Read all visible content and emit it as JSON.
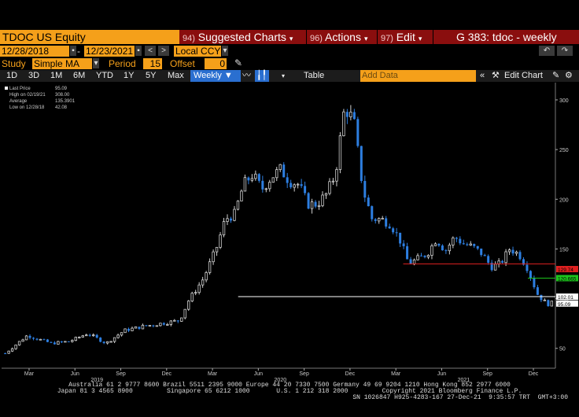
{
  "header": {
    "ticker": "TDOC US Equity",
    "suggested": {
      "num": "94)",
      "label": "Suggested Charts"
    },
    "actions": {
      "num": "96)",
      "label": "Actions"
    },
    "edit": {
      "num": "97)",
      "label": "Edit"
    },
    "right_title": "G 383: tdoc - weekly"
  },
  "dates": {
    "start": "12/28/2018",
    "end": "12/23/2021",
    "currency": "Local CCY"
  },
  "study": {
    "label": "Study",
    "type": "Simple MA",
    "period_label": "Period",
    "period": "15",
    "offset_label": "Offset",
    "offset": "0"
  },
  "toolbar": {
    "ranges": [
      "1D",
      "3D",
      "1M",
      "6M",
      "YTD",
      "1Y",
      "5Y",
      "Max"
    ],
    "frequency": "Weekly",
    "table": "Table",
    "add_data_placeholder": "Add Data",
    "edit_chart": "Edit Chart"
  },
  "legend": [
    {
      "label": "Last Price",
      "value": "95.09",
      "color": "#ffffff"
    },
    {
      "label": "High on 02/19/21",
      "value": "308.00",
      "color": "#000000"
    },
    {
      "label": "Average",
      "value": "135.3901",
      "color": "#000000"
    },
    {
      "label": "Low on 12/28/18",
      "value": "42.08",
      "color": "#000000"
    }
  ],
  "colors": {
    "up": "#d0d0d0",
    "down": "#2d7ee0",
    "red_line": "#e02020",
    "green_line": "#1cc41c",
    "white_line": "#ffffff",
    "accent": "#f5a01a",
    "bar": "#8a0e0e"
  },
  "chart_data": {
    "type": "line",
    "title": "",
    "xlabel": "",
    "ylabel": "",
    "style": "candlestick",
    "ylim": [
      30,
      315
    ],
    "yticks": [
      50,
      100,
      150,
      200,
      250,
      300
    ],
    "x_tick_labels": [
      "Mar",
      "Jun",
      "Sep",
      "Dec",
      "Mar",
      "Jun",
      "Sep",
      "Dec",
      "Mar",
      "Jun",
      "Sep",
      "Dec"
    ],
    "x_tick_positions": [
      0.13,
      0.38,
      0.63,
      0.88,
      1.13,
      1.38,
      1.63,
      1.88,
      2.13,
      2.38,
      2.63,
      2.88
    ],
    "year_labels": [
      {
        "label": "2019",
        "pos": 0.5
      },
      {
        "label": "2020",
        "pos": 1.5
      },
      {
        "label": "2021",
        "pos": 2.5
      }
    ],
    "x": [
      0.0,
      0.12,
      0.25,
      0.35,
      0.45,
      0.55,
      0.65,
      0.75,
      0.85,
      0.95,
      1.0,
      1.08,
      1.15,
      1.2,
      1.25,
      1.3,
      1.35,
      1.4,
      1.45,
      1.5,
      1.55,
      1.6,
      1.65,
      1.7,
      1.75,
      1.8,
      1.85,
      1.9,
      1.95,
      2.0,
      2.05,
      2.1,
      2.15,
      2.2,
      2.25,
      2.3,
      2.35,
      2.4,
      2.45,
      2.5,
      2.55,
      2.6,
      2.65,
      2.7,
      2.75,
      2.8,
      2.85,
      2.9,
      2.95,
      2.98
    ],
    "close": [
      45,
      63,
      55,
      57,
      65,
      55,
      68,
      72,
      75,
      78,
      98,
      120,
      150,
      180,
      185,
      215,
      225,
      210,
      222,
      230,
      218,
      215,
      195,
      195,
      205,
      225,
      292,
      280,
      210,
      180,
      180,
      175,
      160,
      135,
      140,
      145,
      160,
      148,
      162,
      155,
      152,
      145,
      132,
      135,
      150,
      145,
      130,
      105,
      95,
      95
    ],
    "price_tags": [
      {
        "label": "129.74",
        "value": 129.74,
        "color": "#e02020"
      },
      {
        "label": "120.665",
        "value": 120.665,
        "color": "#1cc41c"
      },
      {
        "label": "102.01",
        "value": 102.01,
        "color": "#ffffff"
      },
      {
        "label": "95.09",
        "value": 95.09,
        "color": "#ffffff"
      }
    ],
    "hlines": [
      {
        "value": 135,
        "from": 2.17,
        "color": "#e02020"
      },
      {
        "value": 120.665,
        "from": 2.85,
        "color": "#1cc41c"
      },
      {
        "value": 102,
        "from": 1.27,
        "color": "#ffffff"
      }
    ]
  },
  "footer": {
    "line1": "Australia 61 2 9777 8600 Brazil 5511 2395 9000 Europe 44 20 7330 7500 Germany 49 69 9204 1210 Hong Kong 852 2977 6000",
    "line2": "Japan 81 3 4565 8900         Singapore 65 6212 1000       U.S. 1 212 318 2000         Copyright 2021 Bloomberg Finance L.P.",
    "line3": "SN 1026847 H925-4283-167 27-Dec-21  9:35:57 TRT  GMT+3:00"
  }
}
